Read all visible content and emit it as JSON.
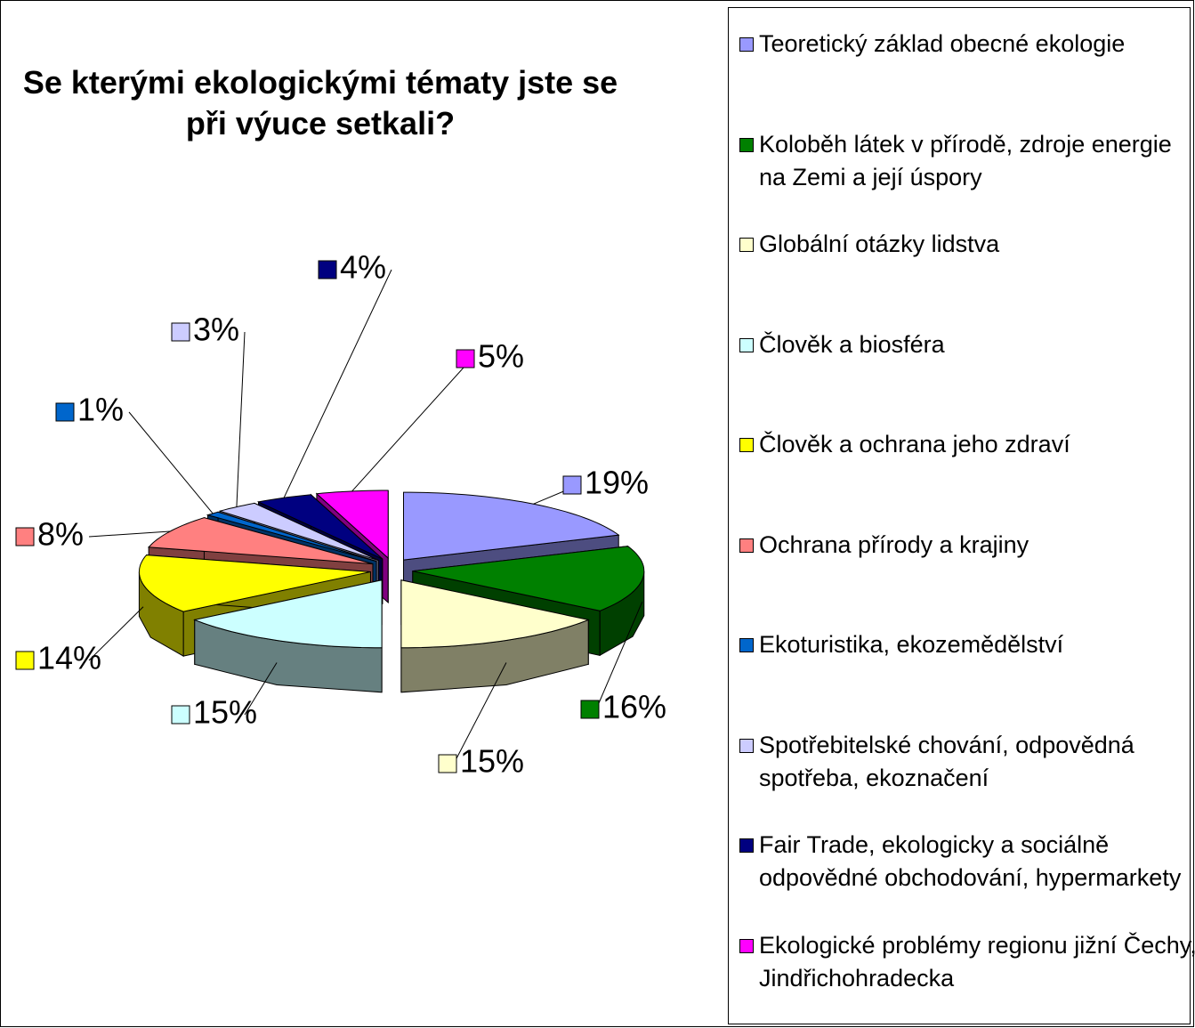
{
  "chart_data": {
    "type": "pie3d",
    "title": "Se kterými ekologickými tématy jste se při výuce setkali?",
    "categories": [
      "Teoretický základ obecné ekologie",
      "Koloběh látek v přírodě, zdroje energie na Zemi a její úspory",
      "Globální otázky lidstva",
      "Člověk a biosféra",
      "Člověk a ochrana jeho zdraví",
      "Ochrana přírody a krajiny",
      "Ekoturistika, ekozemědělství",
      "Spotřebitelské chování, odpovědná spotřeba, ekoznačení",
      "Fair Trade, ekologicky a sociálně odpovědné obchodování, hypermarkety",
      "Ekologické problémy regionu jižní Čechy, Jindřichohradecka"
    ],
    "values": [
      19,
      16,
      15,
      15,
      14,
      8,
      1,
      3,
      4,
      5
    ],
    "value_labels": [
      "19%",
      "16%",
      "15%",
      "15%",
      "14%",
      "8%",
      "1%",
      "3%",
      "4%",
      "5%"
    ],
    "colors": [
      "#9999ff",
      "#008000",
      "#ffffcc",
      "#ccffff",
      "#ffff00",
      "#ff8080",
      "#0066cc",
      "#ccccff",
      "#000080",
      "#ff00ff"
    ],
    "legend": "right"
  }
}
